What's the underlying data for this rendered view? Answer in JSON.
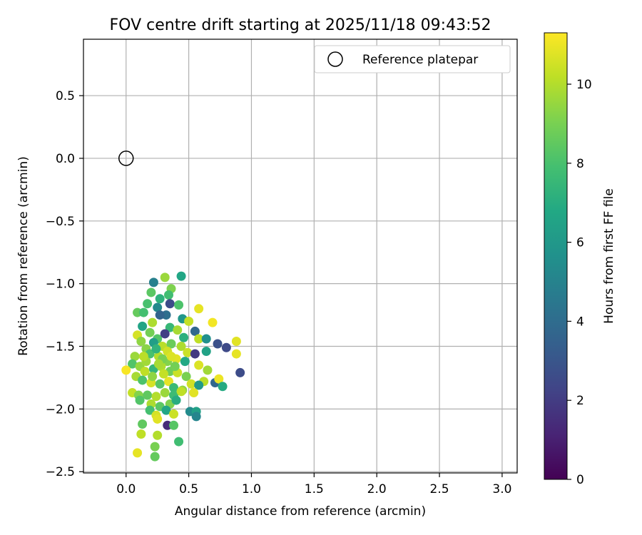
{
  "chart_data": {
    "type": "scatter",
    "title": "FOV centre drift starting at 2025/11/18 09:43:52",
    "xlabel": "Angular distance from reference (arcmin)",
    "ylabel": "Rotation from reference (arcmin)",
    "xlim": [
      -0.34,
      3.12
    ],
    "ylim": [
      -2.51,
      0.95
    ],
    "xticks": [
      0.0,
      0.5,
      1.0,
      1.5,
      2.0,
      2.5,
      3.0
    ],
    "xtick_labels": [
      "0.0",
      "0.5",
      "1.0",
      "1.5",
      "2.0",
      "2.5",
      "3.0"
    ],
    "yticks": [
      0.5,
      0.0,
      -0.5,
      -1.0,
      -1.5,
      -2.0,
      -2.5
    ],
    "ytick_labels": [
      "0.5",
      "0.0",
      "−0.5",
      "−1.0",
      "−1.5",
      "−2.0",
      "−2.5"
    ],
    "grid": true,
    "legend": {
      "position": "top-right",
      "label": "Reference platepar"
    },
    "reference_point": {
      "x": 0.0,
      "y": 0.0
    },
    "colorbar": {
      "label": "Hours from first FF file",
      "min": 0,
      "max": 11.3,
      "ticks": [
        0,
        2,
        4,
        6,
        8,
        10
      ],
      "tick_labels": [
        "0",
        "2",
        "4",
        "6",
        "8",
        "10"
      ],
      "colormap": "viridis"
    },
    "points": [
      [
        0.44,
        -0.94,
        6.7
      ],
      [
        0.22,
        -0.99,
        4.9
      ],
      [
        0.31,
        -0.95,
        9.6
      ],
      [
        0.36,
        -1.04,
        9.1
      ],
      [
        0.34,
        -1.09,
        7.8
      ],
      [
        0.2,
        -1.07,
        8.4
      ],
      [
        0.27,
        -1.12,
        7.2
      ],
      [
        0.35,
        -1.16,
        2.6
      ],
      [
        0.42,
        -1.17,
        8.1
      ],
      [
        0.17,
        -1.16,
        8.0
      ],
      [
        0.58,
        -1.2,
        10.9
      ],
      [
        0.25,
        -1.19,
        5.3
      ],
      [
        0.09,
        -1.23,
        8.6
      ],
      [
        0.14,
        -1.23,
        7.9
      ],
      [
        0.32,
        -1.25,
        4.1
      ],
      [
        0.21,
        -1.31,
        9.9
      ],
      [
        0.27,
        -1.25,
        3.6
      ],
      [
        0.45,
        -1.28,
        5.9
      ],
      [
        0.5,
        -1.3,
        10.3
      ],
      [
        0.69,
        -1.31,
        11.1
      ],
      [
        0.13,
        -1.34,
        6.6
      ],
      [
        0.35,
        -1.35,
        7.5
      ],
      [
        0.41,
        -1.37,
        9.8
      ],
      [
        0.55,
        -1.38,
        3.8
      ],
      [
        0.19,
        -1.39,
        8.9
      ],
      [
        0.09,
        -1.41,
        10.6
      ],
      [
        0.25,
        -1.44,
        8.2
      ],
      [
        0.31,
        -1.4,
        2.1
      ],
      [
        0.46,
        -1.43,
        7.1
      ],
      [
        0.58,
        -1.44,
        10.2
      ],
      [
        0.64,
        -1.44,
        5.6
      ],
      [
        0.73,
        -1.48,
        2.8
      ],
      [
        0.8,
        -1.51,
        2.5
      ],
      [
        0.88,
        -1.46,
        10.8
      ],
      [
        0.12,
        -1.46,
        9.4
      ],
      [
        0.16,
        -1.52,
        9.3
      ],
      [
        0.22,
        -1.47,
        6.3
      ],
      [
        0.29,
        -1.5,
        10.1
      ],
      [
        0.36,
        -1.48,
        8.7
      ],
      [
        0.44,
        -1.5,
        9.9
      ],
      [
        0.49,
        -1.55,
        10.4
      ],
      [
        0.55,
        -1.56,
        1.9
      ],
      [
        0.64,
        -1.54,
        6.5
      ],
      [
        0.88,
        -1.56,
        10.9
      ],
      [
        0.07,
        -1.58,
        9.6
      ],
      [
        0.19,
        -1.56,
        8.0
      ],
      [
        0.26,
        -1.58,
        10.0
      ],
      [
        0.33,
        -1.62,
        9.2
      ],
      [
        0.4,
        -1.6,
        10.8
      ],
      [
        0.47,
        -1.62,
        6.8
      ],
      [
        0.58,
        -1.65,
        10.7
      ],
      [
        0.65,
        -1.69,
        9.7
      ],
      [
        0.91,
        -1.71,
        2.6
      ],
      [
        0.05,
        -1.64,
        8.2
      ],
      [
        0.11,
        -1.66,
        9.5
      ],
      [
        0.15,
        -1.7,
        10.2
      ],
      [
        0.22,
        -1.68,
        7.4
      ],
      [
        0.28,
        -1.66,
        9.9
      ],
      [
        0.35,
        -1.7,
        8.8
      ],
      [
        0.41,
        -1.71,
        10.4
      ],
      [
        0.48,
        -1.74,
        9.0
      ],
      [
        0.62,
        -1.78,
        10.1
      ],
      [
        0.71,
        -1.79,
        3.7
      ],
      [
        0.74,
        -1.76,
        11.0
      ],
      [
        0.77,
        -1.82,
        6.9
      ],
      [
        0.0,
        -1.69,
        11.2
      ],
      [
        0.08,
        -1.74,
        9.8
      ],
      [
        0.13,
        -1.77,
        8.1
      ],
      [
        0.2,
        -1.79,
        10.6
      ],
      [
        0.27,
        -1.8,
        8.3
      ],
      [
        0.34,
        -1.78,
        10.9
      ],
      [
        0.38,
        -1.83,
        7.6
      ],
      [
        0.45,
        -1.85,
        9.4
      ],
      [
        0.52,
        -1.8,
        10.5
      ],
      [
        0.58,
        -1.81,
        6.1
      ],
      [
        0.05,
        -1.87,
        10.3
      ],
      [
        0.1,
        -1.89,
        9.2
      ],
      [
        0.17,
        -1.89,
        8.5
      ],
      [
        0.24,
        -1.9,
        10.0
      ],
      [
        0.31,
        -1.87,
        9.6
      ],
      [
        0.38,
        -1.89,
        7.7
      ],
      [
        0.44,
        -1.86,
        10.2
      ],
      [
        0.54,
        -1.87,
        10.8
      ],
      [
        0.11,
        -1.93,
        8.2
      ],
      [
        0.2,
        -1.96,
        9.9
      ],
      [
        0.27,
        -1.98,
        8.4
      ],
      [
        0.35,
        -1.96,
        9.1
      ],
      [
        0.4,
        -1.93,
        7.0
      ],
      [
        0.19,
        -2.01,
        7.9
      ],
      [
        0.32,
        -2.01,
        6.7
      ],
      [
        0.24,
        -2.05,
        10.6
      ],
      [
        0.38,
        -2.04,
        10.4
      ],
      [
        0.51,
        -2.02,
        5.4
      ],
      [
        0.56,
        -2.02,
        6.4
      ],
      [
        0.56,
        -2.06,
        5.1
      ],
      [
        0.25,
        -2.08,
        10.8
      ],
      [
        0.13,
        -2.12,
        8.5
      ],
      [
        0.33,
        -2.13,
        1.4
      ],
      [
        0.38,
        -2.13,
        8.3
      ],
      [
        0.12,
        -2.2,
        10.2
      ],
      [
        0.25,
        -2.21,
        10.0
      ],
      [
        0.42,
        -2.26,
        7.8
      ],
      [
        0.23,
        -2.3,
        9.0
      ],
      [
        0.09,
        -2.35,
        10.9
      ],
      [
        0.23,
        -2.38,
        8.6
      ],
      [
        0.33,
        -1.54,
        10.5
      ],
      [
        0.29,
        -1.6,
        9.0
      ],
      [
        0.24,
        -1.52,
        7.3
      ],
      [
        0.36,
        -1.58,
        10.7
      ],
      [
        0.16,
        -1.62,
        9.7
      ],
      [
        0.3,
        -1.72,
        10.3
      ],
      [
        0.21,
        -1.74,
        9.4
      ],
      [
        0.39,
        -1.66,
        8.9
      ],
      [
        0.14,
        -1.58,
        10.1
      ],
      [
        0.26,
        -1.64,
        9.8
      ]
    ]
  }
}
